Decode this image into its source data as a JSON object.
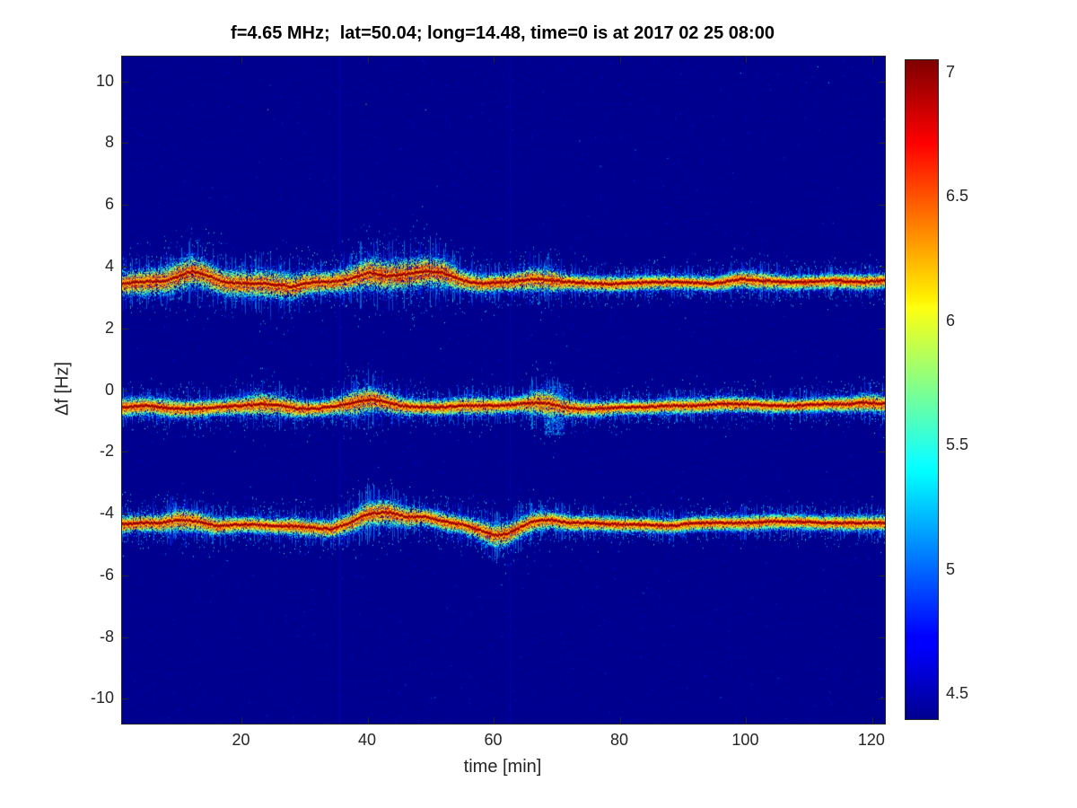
{
  "figure": {
    "background": "#ffffff",
    "axes_color": "#262626",
    "title_color": "#000000"
  },
  "chart_data": {
    "type": "heatmap",
    "title": "f=4.65 MHz;  lat=50.04; long=14.48, time=0 is at 2017 02 25 08:00",
    "xlabel": "time [min]",
    "ylabel": "Δf [Hz]",
    "xlim": [
      1,
      122
    ],
    "ylim": [
      -10.8,
      10.8
    ],
    "xticks": [
      20,
      40,
      60,
      80,
      100,
      120
    ],
    "xtick_labels": [
      "20",
      "40",
      "60",
      "80",
      "100",
      "120"
    ],
    "yticks": [
      10,
      8,
      6,
      4,
      2,
      0,
      -2,
      -4,
      -6,
      -8,
      -10
    ],
    "ytick_labels": [
      "10",
      "8",
      "6",
      "4",
      "2",
      "0",
      "-2",
      "-4",
      "-6",
      "-8",
      "-10"
    ],
    "colormap": "jet",
    "grid": false,
    "legend": "none",
    "background_value": 4.4,
    "colorbar": {
      "position": "right",
      "min": 4.4,
      "max": 7.05,
      "ticks": [
        7,
        6.5,
        6,
        5.5,
        5,
        4.5
      ],
      "tick_labels": [
        "7",
        "6.5",
        "6",
        "5.5",
        "5",
        "4.5"
      ]
    },
    "noise": {
      "count": 9500,
      "seed": 1234567
    },
    "artifact_columns": [
      35.5,
      62.5
    ],
    "bands": [
      {
        "name": "upper-doppler-trace",
        "points": [
          [
            1,
            3.45,
            0.45
          ],
          [
            4,
            3.5,
            0.5
          ],
          [
            8,
            3.55,
            0.55
          ],
          [
            12,
            3.85,
            0.6
          ],
          [
            14,
            3.75,
            0.55
          ],
          [
            17,
            3.5,
            0.5
          ],
          [
            20,
            3.45,
            0.5
          ],
          [
            24,
            3.45,
            0.55
          ],
          [
            28,
            3.35,
            0.5
          ],
          [
            31,
            3.5,
            0.45
          ],
          [
            34,
            3.5,
            0.4
          ],
          [
            37,
            3.6,
            0.5
          ],
          [
            40,
            3.8,
            0.6
          ],
          [
            43,
            3.7,
            0.6
          ],
          [
            46,
            3.75,
            0.6
          ],
          [
            49,
            3.85,
            0.6
          ],
          [
            52,
            3.8,
            0.55
          ],
          [
            55,
            3.55,
            0.4
          ],
          [
            58,
            3.45,
            0.35
          ],
          [
            62,
            3.5,
            0.35
          ],
          [
            66,
            3.6,
            0.45
          ],
          [
            69,
            3.55,
            0.45
          ],
          [
            72,
            3.5,
            0.3
          ],
          [
            76,
            3.45,
            0.3
          ],
          [
            80,
            3.45,
            0.3
          ],
          [
            85,
            3.5,
            0.28
          ],
          [
            90,
            3.5,
            0.28
          ],
          [
            95,
            3.45,
            0.28
          ],
          [
            99,
            3.6,
            0.35
          ],
          [
            102,
            3.55,
            0.35
          ],
          [
            106,
            3.5,
            0.28
          ],
          [
            110,
            3.5,
            0.28
          ],
          [
            114,
            3.55,
            0.3
          ],
          [
            118,
            3.5,
            0.3
          ],
          [
            122,
            3.55,
            0.3
          ]
        ]
      },
      {
        "name": "middle-doppler-trace",
        "points": [
          [
            1,
            -0.55,
            0.35
          ],
          [
            5,
            -0.5,
            0.35
          ],
          [
            9,
            -0.6,
            0.35
          ],
          [
            13,
            -0.6,
            0.35
          ],
          [
            16,
            -0.55,
            0.3
          ],
          [
            20,
            -0.5,
            0.35
          ],
          [
            23,
            -0.45,
            0.45
          ],
          [
            26,
            -0.5,
            0.4
          ],
          [
            29,
            -0.6,
            0.35
          ],
          [
            32,
            -0.6,
            0.3
          ],
          [
            35,
            -0.5,
            0.35
          ],
          [
            38,
            -0.4,
            0.5
          ],
          [
            40,
            -0.3,
            0.5
          ],
          [
            42,
            -0.35,
            0.45
          ],
          [
            45,
            -0.5,
            0.35
          ],
          [
            48,
            -0.55,
            0.3
          ],
          [
            52,
            -0.55,
            0.3
          ],
          [
            55,
            -0.5,
            0.35
          ],
          [
            58,
            -0.5,
            0.35
          ],
          [
            61,
            -0.5,
            0.3
          ],
          [
            64,
            -0.45,
            0.3
          ],
          [
            67,
            -0.4,
            0.5
          ],
          [
            69,
            -0.45,
            0.55
          ],
          [
            71,
            -0.55,
            0.4
          ],
          [
            74,
            -0.6,
            0.3
          ],
          [
            77,
            -0.6,
            0.3
          ],
          [
            80,
            -0.55,
            0.28
          ],
          [
            84,
            -0.55,
            0.28
          ],
          [
            88,
            -0.5,
            0.3
          ],
          [
            92,
            -0.5,
            0.3
          ],
          [
            96,
            -0.45,
            0.3
          ],
          [
            100,
            -0.45,
            0.3
          ],
          [
            104,
            -0.5,
            0.28
          ],
          [
            108,
            -0.5,
            0.28
          ],
          [
            112,
            -0.45,
            0.28
          ],
          [
            116,
            -0.45,
            0.3
          ],
          [
            119,
            -0.4,
            0.35
          ],
          [
            122,
            -0.45,
            0.35
          ]
        ]
      },
      {
        "name": "lower-doppler-trace",
        "points": [
          [
            1,
            -4.35,
            0.35
          ],
          [
            4,
            -4.3,
            0.35
          ],
          [
            7,
            -4.3,
            0.35
          ],
          [
            10,
            -4.2,
            0.45
          ],
          [
            13,
            -4.25,
            0.4
          ],
          [
            16,
            -4.4,
            0.35
          ],
          [
            19,
            -4.35,
            0.3
          ],
          [
            22,
            -4.35,
            0.3
          ],
          [
            25,
            -4.4,
            0.3
          ],
          [
            28,
            -4.4,
            0.35
          ],
          [
            31,
            -4.45,
            0.35
          ],
          [
            34,
            -4.5,
            0.35
          ],
          [
            37,
            -4.3,
            0.4
          ],
          [
            40,
            -4.0,
            0.5
          ],
          [
            43,
            -3.95,
            0.5
          ],
          [
            46,
            -4.1,
            0.4
          ],
          [
            49,
            -4.1,
            0.35
          ],
          [
            52,
            -4.25,
            0.35
          ],
          [
            55,
            -4.35,
            0.35
          ],
          [
            58,
            -4.55,
            0.4
          ],
          [
            60,
            -4.7,
            0.45
          ],
          [
            62,
            -4.65,
            0.45
          ],
          [
            64,
            -4.45,
            0.4
          ],
          [
            66,
            -4.25,
            0.4
          ],
          [
            69,
            -4.2,
            0.35
          ],
          [
            72,
            -4.3,
            0.3
          ],
          [
            76,
            -4.3,
            0.3
          ],
          [
            80,
            -4.35,
            0.28
          ],
          [
            84,
            -4.35,
            0.28
          ],
          [
            88,
            -4.4,
            0.28
          ],
          [
            92,
            -4.3,
            0.28
          ],
          [
            96,
            -4.3,
            0.28
          ],
          [
            100,
            -4.3,
            0.3
          ],
          [
            104,
            -4.25,
            0.3
          ],
          [
            108,
            -4.25,
            0.28
          ],
          [
            112,
            -4.3,
            0.28
          ],
          [
            116,
            -4.3,
            0.3
          ],
          [
            119,
            -4.3,
            0.3
          ],
          [
            122,
            -4.3,
            0.3
          ]
        ]
      }
    ],
    "blobs": [
      {
        "t": 69.5,
        "y": -1.15,
        "rt": 1.6,
        "ry": 0.3,
        "count": 220,
        "vmin": 4.7,
        "vmax": 5.6
      },
      {
        "t": 70.5,
        "y": -0.05,
        "rt": 1.2,
        "ry": 0.25,
        "count": 120,
        "vmin": 4.7,
        "vmax": 5.4
      }
    ]
  }
}
